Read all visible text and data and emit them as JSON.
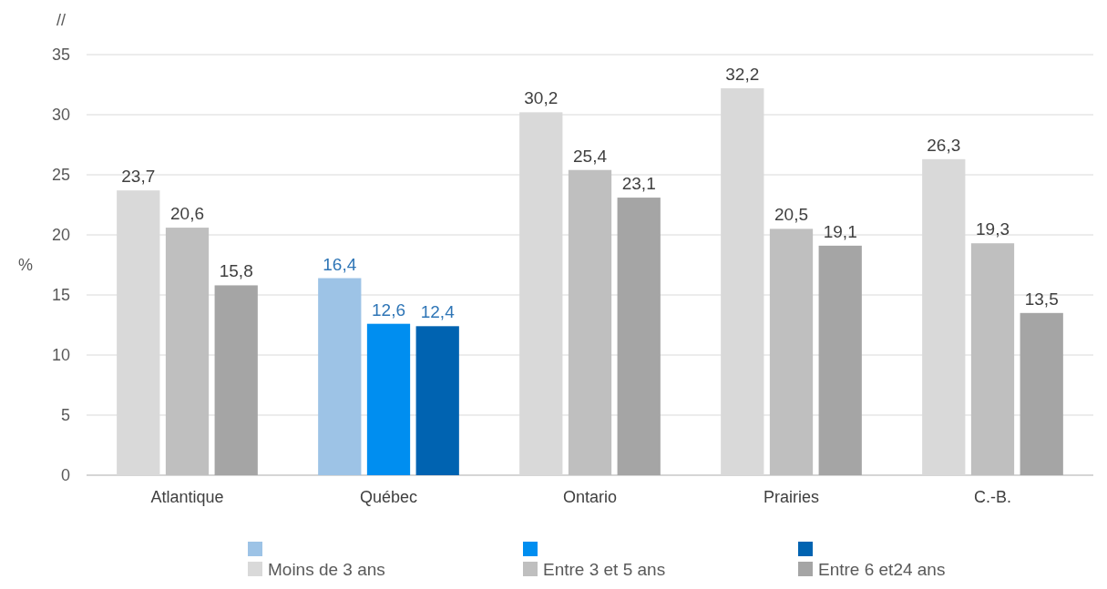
{
  "chart_data": {
    "type": "bar",
    "categories": [
      "Atlantique",
      "Québec",
      "Ontario",
      "Prairies",
      "C.-B."
    ],
    "series": [
      {
        "name": "Moins de 3 ans",
        "color": "#d9d9d9",
        "colors": [
          "#d9d9d9",
          "#9dc3e6",
          "#d9d9d9",
          "#d9d9d9",
          "#d9d9d9"
        ],
        "values": [
          23.7,
          16.4,
          30.2,
          32.2,
          26.3
        ],
        "value_labels": [
          "23,7",
          "16,4",
          "30,2",
          "32,2",
          "26,3"
        ]
      },
      {
        "name": "Entre 3 et 5 ans",
        "color": "#bfbfbf",
        "colors": [
          "#bfbfbf",
          "#008ef0",
          "#bfbfbf",
          "#bfbfbf",
          "#bfbfbf"
        ],
        "values": [
          20.6,
          12.6,
          25.4,
          20.5,
          19.3
        ],
        "value_labels": [
          "20,6",
          "12,6",
          "25,4",
          "20,5",
          "19,3"
        ]
      },
      {
        "name": "Entre 6 et24 ans",
        "color": "#a5a5a5",
        "colors": [
          "#a5a5a5",
          "#0063b1",
          "#a5a5a5",
          "#a5a5a5",
          "#a5a5a5"
        ],
        "values": [
          15.8,
          12.4,
          23.1,
          19.1,
          13.5
        ],
        "value_labels": [
          "15,8",
          "12,4",
          "23,1",
          "19,1",
          "13,5"
        ]
      }
    ],
    "ylabel": "%",
    "ylim": [
      0,
      35
    ],
    "yticks": [
      0,
      5,
      10,
      15,
      20,
      25,
      30,
      35
    ],
    "grid": "y",
    "legend": "bottom",
    "annotations": [
      "//"
    ]
  }
}
